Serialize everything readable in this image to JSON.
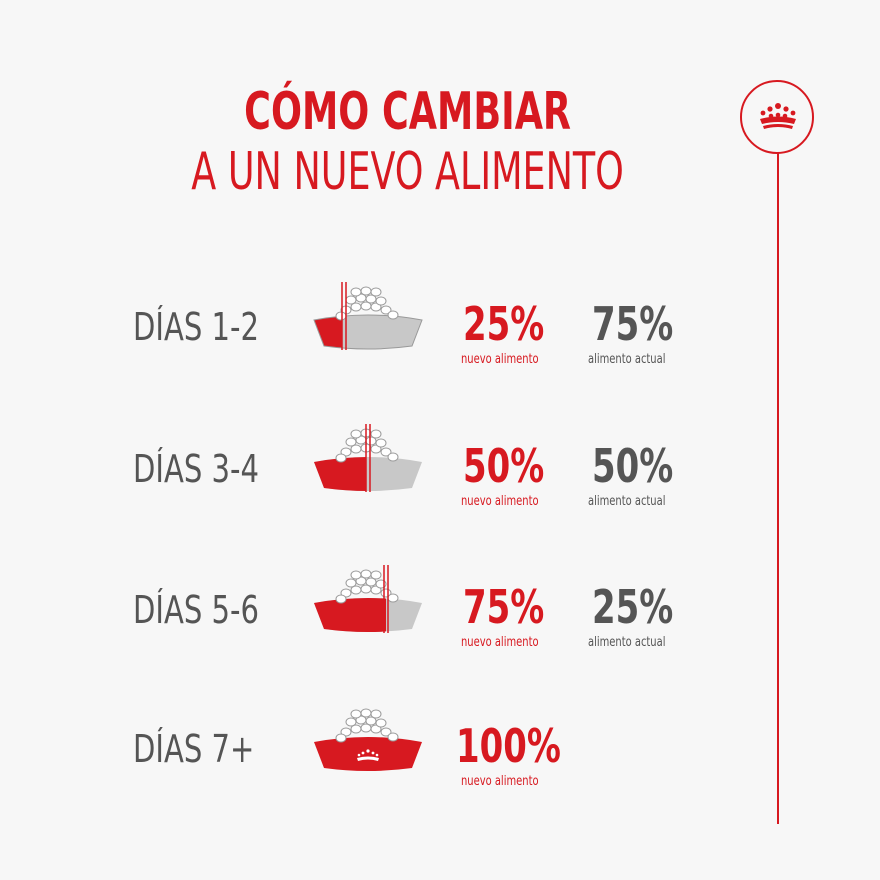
{
  "title": {
    "line1": "CÓMO CAMBIAR",
    "line2": "A UN NUEVO ALIMENTO"
  },
  "logo_icon": "royal-canin-crown-icon",
  "colors": {
    "red": "#d71920",
    "gray": "#555555",
    "bowl_gray": "#c8c8c8"
  },
  "steps": [
    {
      "days": "DÍAS 1-2",
      "new_pct": "25%",
      "new_label": "nuevo alimento",
      "old_pct": "75%",
      "old_label": "alimento actual",
      "new_fraction": 0.25
    },
    {
      "days": "DÍAS 3-4",
      "new_pct": "50%",
      "new_label": "nuevo alimento",
      "old_pct": "50%",
      "old_label": "alimento actual",
      "new_fraction": 0.5
    },
    {
      "days": "DÍAS 5-6",
      "new_pct": "75%",
      "new_label": "nuevo alimento",
      "old_pct": "25%",
      "old_label": "alimento actual",
      "new_fraction": 0.75
    },
    {
      "days": "DÍAS 7+",
      "new_pct": "100%",
      "new_label": "nuevo alimento",
      "new_fraction": 1.0
    }
  ]
}
